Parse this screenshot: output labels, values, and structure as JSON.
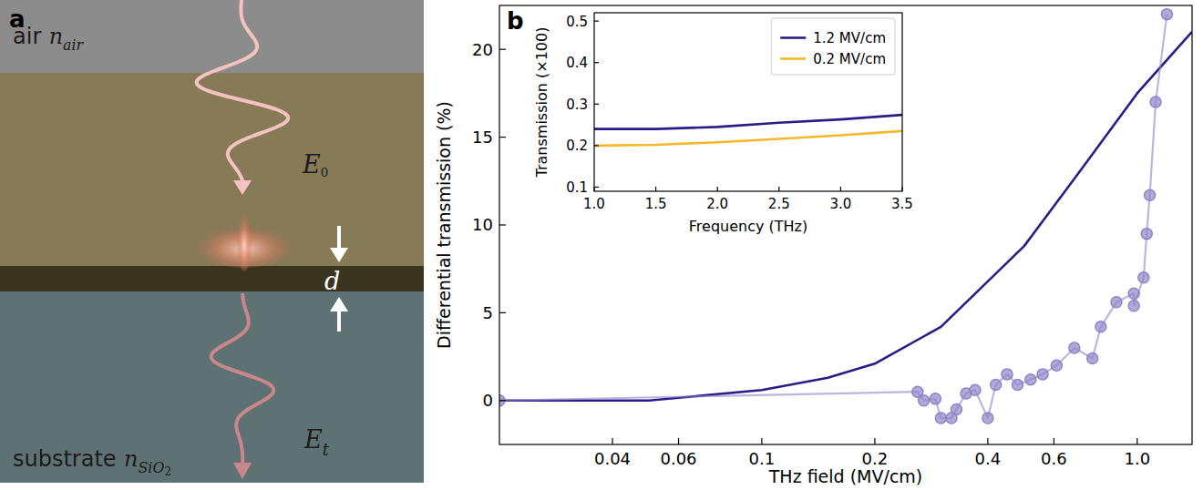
{
  "diagram": {
    "letter": "a",
    "labels": [
      {
        "text": "air",
        "symbol": "n",
        "subscript": "air"
      },
      {
        "symbol": "E",
        "subscript": "0"
      },
      {
        "symbol": "d"
      },
      {
        "symbol": "E",
        "subscript": "t"
      },
      {
        "text": "substrate",
        "symbol": "n",
        "subscript": "SiO2"
      }
    ]
  },
  "chart_data": [
    {
      "type": "line",
      "annotations": [
        "b"
      ],
      "x_label": "THz field (MV/cm)",
      "y_label": "Differential transmission (%)",
      "log": "x",
      "xlim": [
        0.02,
        1.4
      ],
      "xticks": [
        0.04,
        0.06,
        0.1,
        0.2,
        0.4,
        0.6,
        {
          "value": 1,
          "label": "1.0"
        }
      ],
      "ylim": [
        -2.5,
        22.5
      ],
      "yticks": [
        0,
        5,
        10,
        15,
        20
      ],
      "series": [
        {
          "type": "line",
          "color": "#2e1a87",
          "line_style": "solid",
          "x": [
            0.02,
            0.05,
            0.1,
            0.15,
            0.2,
            0.3,
            0.5,
            0.7,
            1.0,
            1.4
          ],
          "values": [
            0,
            0,
            0.6,
            1.3,
            2.1,
            4.2,
            8.8,
            13,
            17.5,
            21
          ]
        },
        {
          "type": "scatter",
          "color": "#8e86c8",
          "marker": "circle",
          "line_style": "solid",
          "x": [
            0.02,
            0.26,
            0.27,
            0.29,
            0.3,
            0.32,
            0.33,
            0.35,
            0.37,
            0.4,
            0.42,
            0.45,
            0.48,
            0.52,
            0.56,
            0.61,
            0.68,
            0.76,
            0.8,
            0.88,
            0.98,
            0.98,
            1.04,
            1.06,
            1.08,
            1.12,
            1.2
          ],
          "values": [
            0,
            0.5,
            0,
            0.1,
            -1,
            -1,
            -0.5,
            0.4,
            0.6,
            -1,
            0.9,
            1.5,
            0.9,
            1.2,
            1.5,
            2,
            3,
            2.4,
            4.2,
            5.6,
            6.1,
            5.4,
            7,
            9.5,
            11.7,
            17,
            22
          ]
        }
      ]
    },
    {
      "type": "line",
      "x_label": "Frequency (THz)",
      "y_label": "Transmission (×100)",
      "legend": "upper right",
      "x": [
        1,
        1.5,
        2,
        2.5,
        3,
        3.5
      ],
      "xlim": [
        1,
        3.5
      ],
      "xticks": [
        {
          "value": 1,
          "label": "1.0"
        },
        1.5,
        {
          "value": 2,
          "label": "2.0"
        },
        2.5,
        {
          "value": 3,
          "label": "3.0"
        },
        3.5
      ],
      "ylim": [
        0.09,
        0.52
      ],
      "yticks": [
        0.1,
        0.2,
        0.3,
        0.4,
        0.5
      ],
      "series": [
        {
          "name": "1.2 MV/cm",
          "color": "#2e1a87",
          "values": [
            0.24,
            0.24,
            0.245,
            0.255,
            0.263,
            0.274
          ]
        },
        {
          "name": "0.2 MV/cm",
          "color": "#f5b82a",
          "values": [
            0.2,
            0.202,
            0.208,
            0.216,
            0.225,
            0.235
          ]
        }
      ]
    }
  ]
}
